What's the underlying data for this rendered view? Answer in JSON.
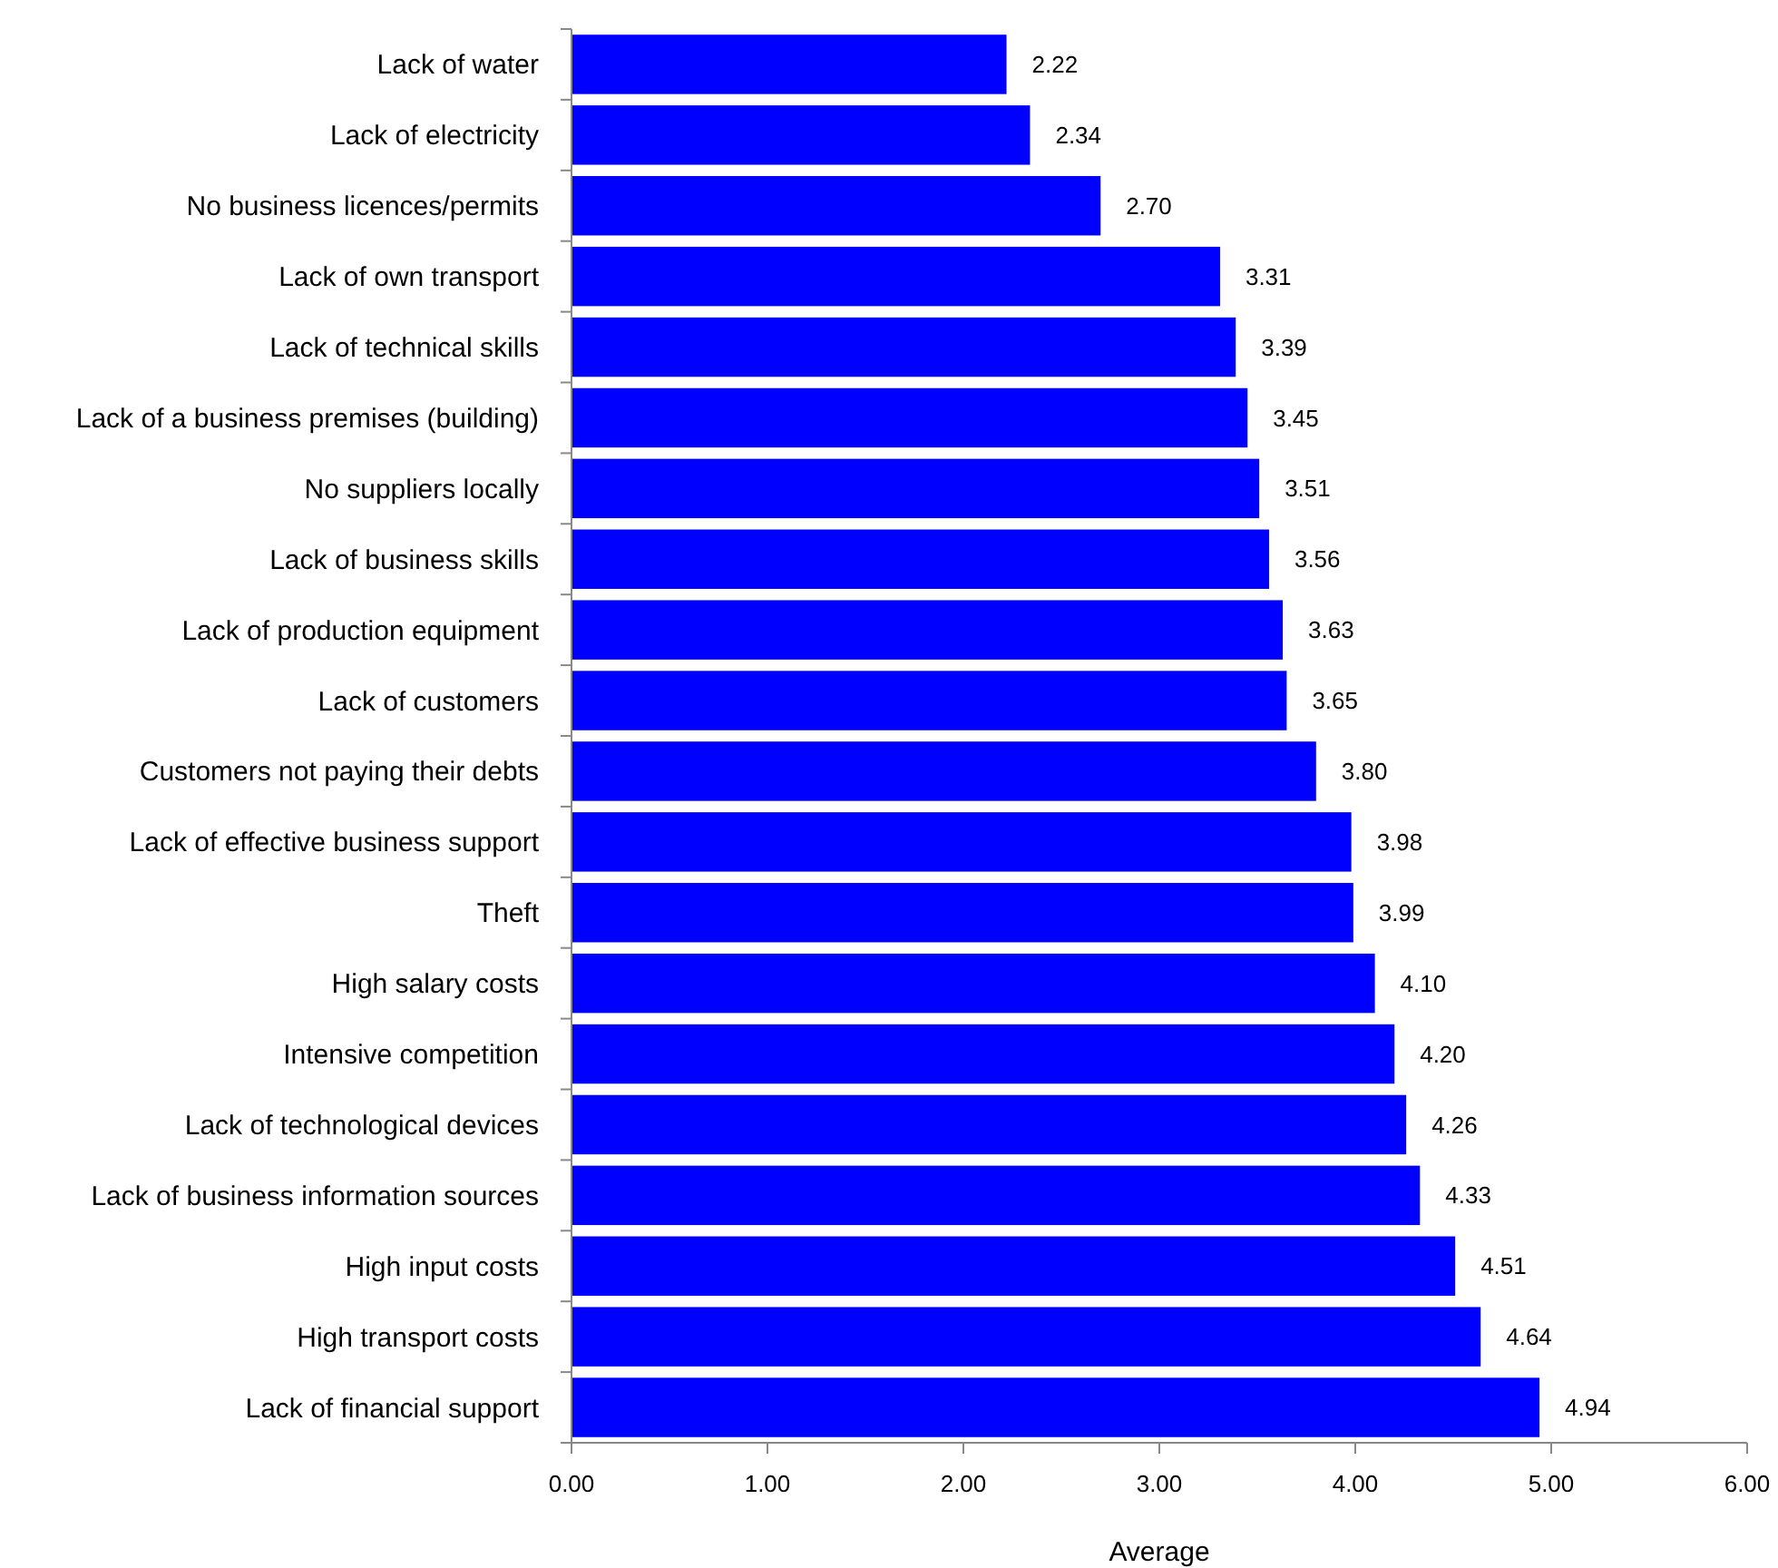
{
  "chart_data": {
    "type": "bar",
    "orientation": "horizontal",
    "xlabel": "Average",
    "categories": [
      "Lack of water",
      "Lack of electricity",
      "No business licences/permits",
      "Lack of own transport",
      "Lack of technical skills",
      "Lack of a business premises (building)",
      "No suppliers locally",
      "Lack of business skills",
      "Lack of production equipment",
      "Lack of customers",
      "Customers not paying their debts",
      "Lack of effective business support",
      "Theft",
      "High salary costs",
      "Intensive competition",
      "Lack of technological devices",
      "Lack of business information sources",
      "High input costs",
      "High transport costs",
      "Lack of financial support"
    ],
    "values": [
      2.22,
      2.34,
      2.7,
      3.31,
      3.39,
      3.45,
      3.51,
      3.56,
      3.63,
      3.65,
      3.8,
      3.98,
      3.99,
      4.1,
      4.2,
      4.26,
      4.33,
      4.51,
      4.64,
      4.94
    ],
    "value_labels": [
      "2.22",
      "2.34",
      "2.70",
      "3.31",
      "3.39",
      "3.45",
      "3.51",
      "3.56",
      "3.63",
      "3.65",
      "3.80",
      "3.98",
      "3.99",
      "4.10",
      "4.20",
      "4.26",
      "4.33",
      "4.51",
      "4.64",
      "4.94"
    ],
    "color": "#0000ff",
    "xlim": [
      0,
      6
    ],
    "xticks": [
      {
        "value": 0,
        "label": "0.00"
      },
      {
        "value": 1,
        "label": "1.00"
      },
      {
        "value": 2,
        "label": "2.00"
      },
      {
        "value": 3,
        "label": "3.00"
      },
      {
        "value": 4,
        "label": "4.00"
      },
      {
        "value": 5,
        "label": "5.00"
      },
      {
        "value": 6,
        "label": "6.00"
      }
    ],
    "grid": false
  }
}
